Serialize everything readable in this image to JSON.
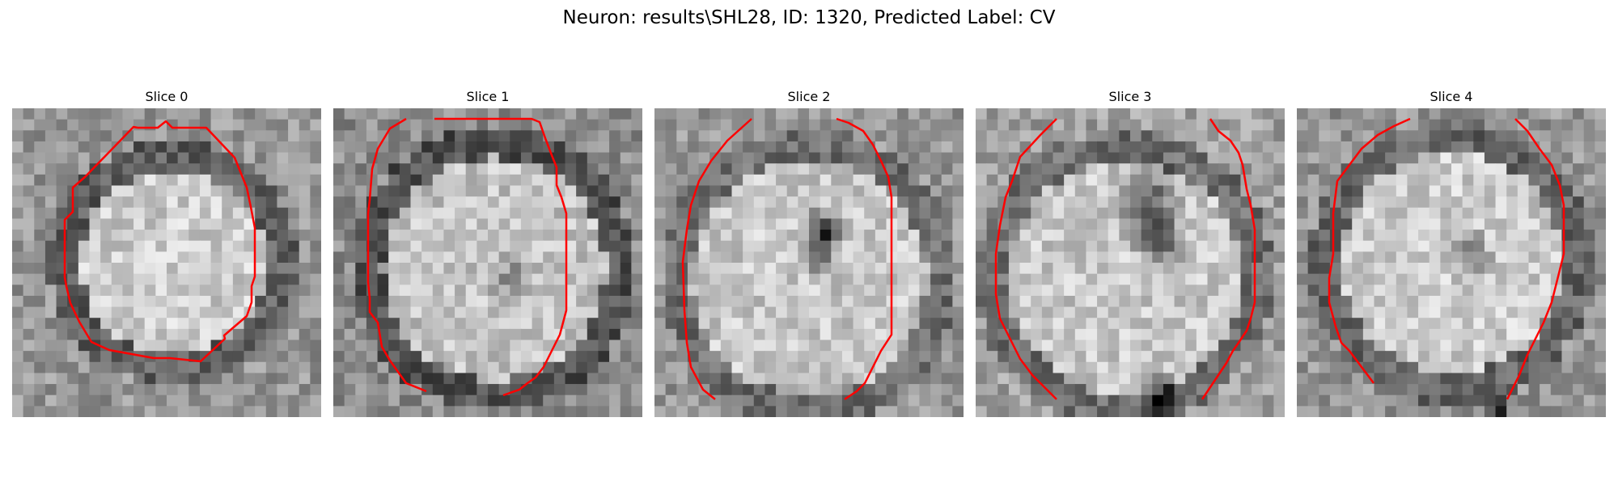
{
  "figure": {
    "title": "Neuron: results\\SHL28, ID: 1320, Predicted Label: CV"
  },
  "slices": [
    {
      "title": "Slice 0"
    },
    {
      "title": "Slice 1"
    },
    {
      "title": "Slice 2"
    },
    {
      "title": "Slice 3"
    },
    {
      "title": "Slice 4"
    }
  ],
  "colors": {
    "background": "#ffffff",
    "contour": "#ff0000",
    "colormap": "gray"
  }
}
